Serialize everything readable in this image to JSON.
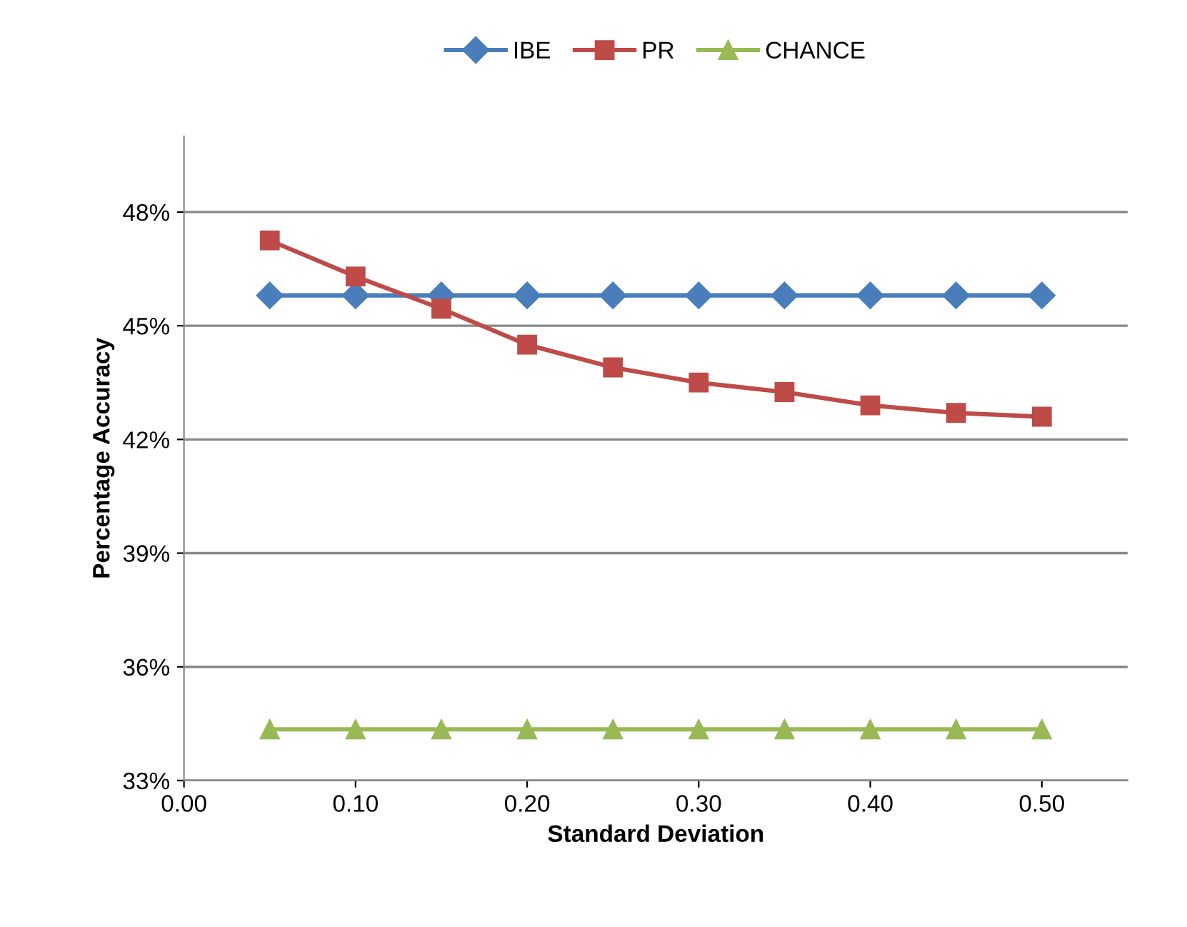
{
  "chart_data": {
    "type": "line",
    "xlabel": "Standard Deviation",
    "ylabel": "Percentage Accuracy",
    "x": [
      0.05,
      0.1,
      0.15,
      0.2,
      0.25,
      0.3,
      0.35,
      0.4,
      0.45,
      0.5
    ],
    "series": [
      {
        "name": "IBE",
        "color": "#4a7ebb",
        "marker": "diamond",
        "values": [
          45.8,
          45.8,
          45.8,
          45.8,
          45.8,
          45.8,
          45.8,
          45.8,
          45.8,
          45.8
        ]
      },
      {
        "name": "PR",
        "color": "#be4b48",
        "marker": "square",
        "values": [
          47.25,
          46.3,
          45.45,
          44.5,
          43.9,
          43.5,
          43.25,
          42.9,
          42.7,
          42.6
        ]
      },
      {
        "name": "CHANCE",
        "color": "#98b954",
        "marker": "triangle",
        "values": [
          34.35,
          34.35,
          34.35,
          34.35,
          34.35,
          34.35,
          34.35,
          34.35,
          34.35,
          34.35
        ]
      }
    ],
    "xlim": [
      0,
      0.55
    ],
    "xticks": [
      {
        "value": 0,
        "label": "0.00"
      },
      {
        "value": 0.1,
        "label": "0.10"
      },
      {
        "value": 0.2,
        "label": "0.20"
      },
      {
        "value": 0.3,
        "label": "0.30"
      },
      {
        "value": 0.4,
        "label": "0.40"
      },
      {
        "value": 0.5,
        "label": "0.50"
      }
    ],
    "ylim": [
      33,
      50
    ],
    "yticks": [
      {
        "value": 33,
        "label": "33%"
      },
      {
        "value": 36,
        "label": "36%"
      },
      {
        "value": 39,
        "label": "39%"
      },
      {
        "value": 42,
        "label": "42%"
      },
      {
        "value": 45,
        "label": "45%"
      },
      {
        "value": 48,
        "label": "48%"
      }
    ],
    "grid": "y",
    "legend": "top",
    "line_style": "solid"
  }
}
